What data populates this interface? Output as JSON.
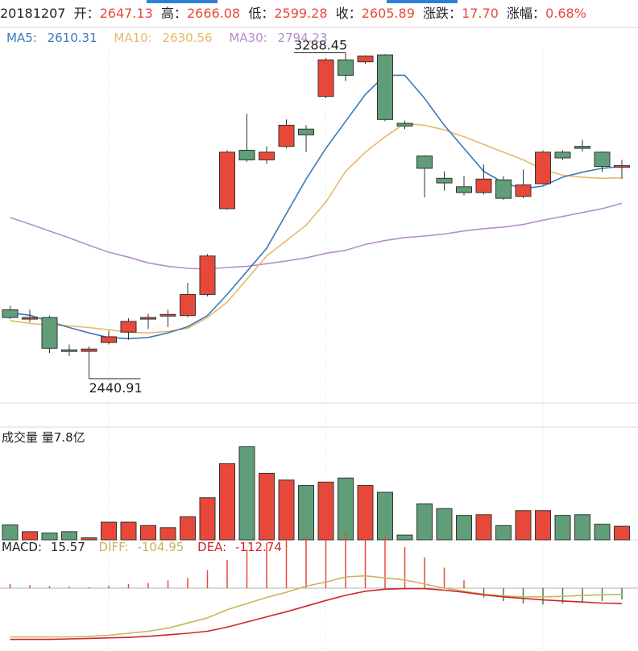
{
  "header": {
    "date": "20181207",
    "open_label": "开：",
    "open": "2647.13",
    "high_label": "高：",
    "high": "2666.08",
    "low_label": "低：",
    "low": "2599.28",
    "close_label": "收：",
    "close": "2605.89",
    "change_label": "涨跌：",
    "change": "17.70",
    "pct_label": "涨幅：",
    "pct": "0.68%"
  },
  "colors": {
    "up": "#e8483a",
    "down": "#5f9e78",
    "ma5": "#3a7ab8",
    "ma10": "#e8b86a",
    "ma30": "#b48fc8",
    "diff": "#c8b45a",
    "dea": "#d0242a",
    "grid": "#d8d8d8"
  },
  "ma_legend": {
    "ma5_label": "MA5:",
    "ma5": "2610.31",
    "ma10_label": "MA10:",
    "ma10": "2630.56",
    "ma30_label": "MA30:",
    "ma30": "2794.23"
  },
  "volume_panel": {
    "title": "成交量 量7.8亿"
  },
  "macd_legend": {
    "macd_label": "MACD:",
    "macd": "15.57",
    "diff_label": "DIFF:",
    "diff": "-104.95",
    "dea_label": "DEA:",
    "dea": "-112.74"
  },
  "chart_data": {
    "type": "candlestick",
    "price_range": [
      2420,
      3300
    ],
    "max_label": "3288.45",
    "min_label": "2440.91",
    "candles": [
      {
        "o": 2620,
        "c": 2600,
        "h": 2630,
        "l": 2596
      },
      {
        "o": 2598,
        "c": 2600,
        "h": 2620,
        "l": 2588
      },
      {
        "o": 2600,
        "c": 2520,
        "h": 2605,
        "l": 2508
      },
      {
        "o": 2516,
        "c": 2512,
        "h": 2530,
        "l": 2500
      },
      {
        "o": 2512,
        "c": 2518,
        "h": 2525,
        "l": 2441
      },
      {
        "o": 2535,
        "c": 2550,
        "h": 2565,
        "l": 2530
      },
      {
        "o": 2562,
        "c": 2590,
        "h": 2598,
        "l": 2542
      },
      {
        "o": 2598,
        "c": 2600,
        "h": 2610,
        "l": 2570
      },
      {
        "o": 2606,
        "c": 2608,
        "h": 2620,
        "l": 2575
      },
      {
        "o": 2605,
        "c": 2660,
        "h": 2690,
        "l": 2600
      },
      {
        "o": 2660,
        "c": 2760,
        "h": 2765,
        "l": 2655
      },
      {
        "o": 2883,
        "c": 3030,
        "h": 3035,
        "l": 2880
      },
      {
        "o": 3035,
        "c": 3010,
        "h": 3130,
        "l": 3005
      },
      {
        "o": 3010,
        "c": 3030,
        "h": 3045,
        "l": 3000
      },
      {
        "o": 3045,
        "c": 3100,
        "h": 3115,
        "l": 3040
      },
      {
        "o": 3090,
        "c": 3075,
        "h": 3100,
        "l": 3030
      },
      {
        "o": 3175,
        "c": 3270,
        "h": 3275,
        "l": 3170
      },
      {
        "o": 3270,
        "c": 3230,
        "h": 3288.45,
        "l": 3215
      },
      {
        "o": 3265,
        "c": 3280,
        "h": 3282,
        "l": 3260
      },
      {
        "o": 3283,
        "c": 3115,
        "h": 3285,
        "l": 3110
      },
      {
        "o": 3105,
        "c": 3098,
        "h": 3112,
        "l": 3090
      },
      {
        "o": 3020,
        "c": 2988,
        "h": 3022,
        "l": 2912
      },
      {
        "o": 2962,
        "c": 2950,
        "h": 2980,
        "l": 2930
      },
      {
        "o": 2940,
        "c": 2925,
        "h": 2968,
        "l": 2918
      },
      {
        "o": 2925,
        "c": 2960,
        "h": 2998,
        "l": 2920
      },
      {
        "o": 2958,
        "c": 2910,
        "h": 2968,
        "l": 2906
      },
      {
        "o": 2915,
        "c": 2945,
        "h": 2985,
        "l": 2910
      },
      {
        "o": 2948,
        "c": 3030,
        "h": 3035,
        "l": 2945
      },
      {
        "o": 3030,
        "c": 3015,
        "h": 3035,
        "l": 3010
      },
      {
        "o": 3045,
        "c": 3040,
        "h": 3062,
        "l": 3032
      },
      {
        "o": 3030,
        "c": 2993,
        "h": 3032,
        "l": 2978
      },
      {
        "o": 2992,
        "c": 2995,
        "h": 3010,
        "l": 2960
      }
    ],
    "ma5": [
      2612,
      2606,
      2590,
      2574,
      2560,
      2548,
      2545,
      2548,
      2560,
      2576,
      2605,
      2660,
      2720,
      2780,
      2870,
      2960,
      3040,
      3110,
      3180,
      3230,
      3230,
      3170,
      3100,
      3040,
      2980,
      2950,
      2935,
      2942,
      2965,
      2978,
      2988,
      2993
    ],
    "ma10": [
      2592,
      2585,
      2580,
      2578,
      2574,
      2568,
      2562,
      2560,
      2564,
      2572,
      2600,
      2640,
      2700,
      2760,
      2800,
      2840,
      2900,
      2980,
      3030,
      3070,
      3105,
      3100,
      3088,
      3070,
      3050,
      3030,
      3010,
      2985,
      2970,
      2965,
      2962,
      2963
    ],
    "ma30": [
      2860,
      2843,
      2825,
      2807,
      2788,
      2770,
      2757,
      2742,
      2733,
      2728,
      2726,
      2730,
      2733,
      2740,
      2747,
      2755,
      2767,
      2775,
      2790,
      2800,
      2808,
      2812,
      2817,
      2825,
      2831,
      2835,
      2842,
      2853,
      2863,
      2873,
      2883,
      2897
    ],
    "volume": [
      0.22,
      0.12,
      0.1,
      0.12,
      0.03,
      0.26,
      0.26,
      0.21,
      0.18,
      0.34,
      0.62,
      1.12,
      1.37,
      0.98,
      0.88,
      0.8,
      0.85,
      0.91,
      0.8,
      0.7,
      0.07,
      0.53,
      0.46,
      0.36,
      0.37,
      0.21,
      0.43,
      0.43,
      0.36,
      0.37,
      0.23,
      0.2
    ],
    "volume_range": [
      0,
      1.4
    ],
    "macd_hist": [
      8,
      6,
      4,
      3,
      2,
      5,
      8,
      10,
      15,
      20,
      35,
      55,
      75,
      88,
      95,
      100,
      105,
      110,
      110,
      100,
      80,
      60,
      40,
      15,
      -18,
      -25,
      -30,
      -32,
      -30,
      -28,
      -25,
      -22
    ],
    "diff": [
      -95,
      -95,
      -95,
      -95,
      -94,
      -92,
      -88,
      -84,
      -78,
      -68,
      -58,
      -42,
      -30,
      -18,
      -8,
      4,
      12,
      22,
      24,
      20,
      16,
      8,
      0,
      -6,
      -12,
      -15,
      -17,
      -17,
      -16,
      -14,
      -13,
      -12
    ],
    "dea": [
      -100,
      -100,
      -100,
      -99,
      -98,
      -97,
      -96,
      -94,
      -91,
      -88,
      -84,
      -76,
      -66,
      -56,
      -46,
      -35,
      -24,
      -14,
      -6,
      -2,
      -1,
      -1,
      -4,
      -8,
      -13,
      -17,
      -20,
      -23,
      -25,
      -27,
      -29,
      -30
    ],
    "macd_range": [
      -110,
      55
    ]
  }
}
